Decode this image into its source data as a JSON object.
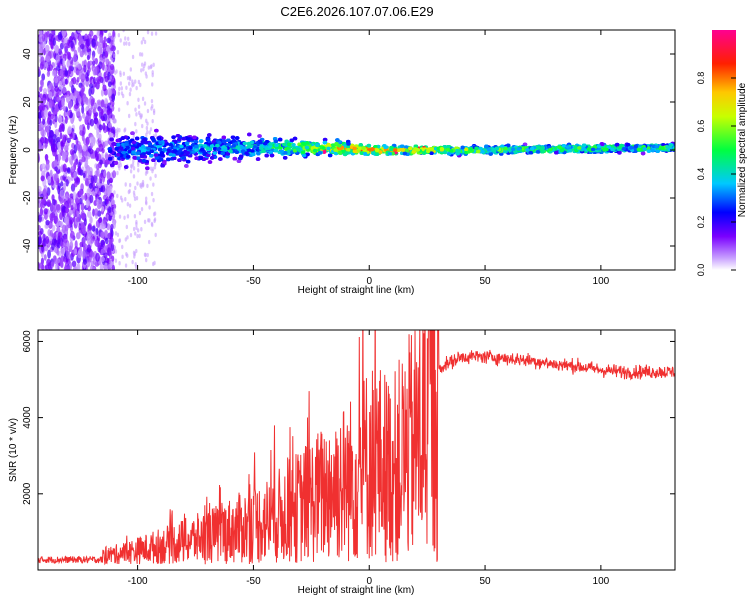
{
  "title": "C2E6.2026.107.07.06.E29",
  "chart_data": [
    {
      "type": "heatmap",
      "title": "C2E6.2026.107.07.06.E29",
      "xlabel": "Height of straight line (km)",
      "ylabel": "Frequency (Hz)",
      "xlim": [
        -143,
        132
      ],
      "ylim": [
        -50,
        50
      ],
      "xticks": [
        -100,
        -50,
        0,
        50,
        100
      ],
      "xtick_labels": [
        "-100",
        "-50",
        "0",
        "50",
        "100"
      ],
      "yticks": [
        -40,
        -20,
        0,
        20,
        40
      ],
      "ytick_labels": [
        "-40",
        "-20",
        "0",
        "20",
        "40"
      ],
      "colorbar": {
        "label": "Normalized spectral amplitude",
        "range": [
          0,
          1
        ],
        "ticks": [
          0.0,
          0.2,
          0.4,
          0.6,
          0.8
        ],
        "tick_labels": [
          "0.0",
          "0.2",
          "0.4",
          "0.6",
          "0.8"
        ],
        "colors": [
          "#ffffff",
          "#b060ff",
          "#0000ff",
          "#00ccff",
          "#00ff00",
          "#ffff00",
          "#ff8000",
          "#ff0000",
          "#ff0090"
        ]
      },
      "ridge": [
        {
          "x": -110,
          "freq": 0,
          "spread_hz": 14,
          "amplitude": 0.3
        },
        {
          "x": -50,
          "freq": 1,
          "spread_hz": 8,
          "amplitude": 0.4
        },
        {
          "x": -15,
          "freq": 1,
          "spread_hz": 5,
          "amplitude": 0.7
        },
        {
          "x": 0,
          "freq": 0,
          "spread_hz": 3,
          "amplitude": 0.8
        },
        {
          "x": 50,
          "freq": 0,
          "spread_hz": 3,
          "amplitude": 0.55
        },
        {
          "x": 130,
          "freq": 1,
          "spread_hz": 3,
          "amplitude": 0.5
        }
      ]
    },
    {
      "type": "line",
      "xlabel": "Height of straight line (km)",
      "ylabel": "SNR (10 * v/v)",
      "xlim": [
        -143,
        132
      ],
      "ylim": [
        0,
        6300
      ],
      "xticks": [
        -100,
        -50,
        0,
        50,
        100
      ],
      "xtick_labels": [
        "-100",
        "-50",
        "0",
        "50",
        "100"
      ],
      "yticks": [
        2000,
        4000,
        6000
      ],
      "ytick_labels": [
        "2000",
        "4000",
        "6000"
      ],
      "line_color": "#f03030",
      "series": [
        {
          "name": "SNR",
          "x": [
            -143,
            -130,
            -120,
            -110,
            -100,
            -90,
            -80,
            -70,
            -60,
            -50,
            -40,
            -30,
            -20,
            -15,
            -10,
            -5,
            0,
            5,
            10,
            15,
            20,
            25,
            30,
            40,
            50,
            60,
            70,
            80,
            90,
            100,
            110,
            120,
            132
          ],
          "values": [
            200,
            230,
            260,
            320,
            450,
            600,
            750,
            900,
            1100,
            1300,
            1550,
            1900,
            2300,
            2600,
            2700,
            2900,
            3400,
            3300,
            3100,
            3600,
            4000,
            4700,
            5300,
            5600,
            5600,
            5550,
            5500,
            5400,
            5350,
            5250,
            5200,
            5200,
            5200
          ]
        }
      ]
    }
  ]
}
